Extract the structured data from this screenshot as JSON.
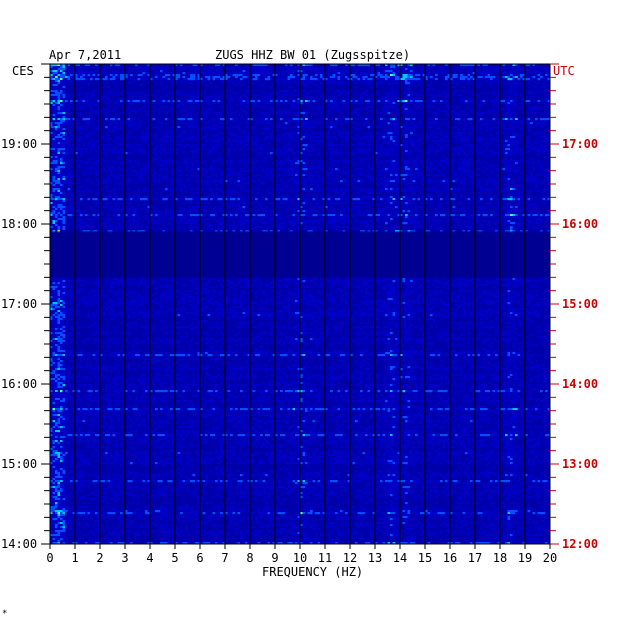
{
  "chart_data": {
    "type": "heatmap",
    "date": "Apr 7,2011",
    "title": "ZUGS HHZ BW 01 (Zugsspitze)",
    "left_axis_label": "CES",
    "right_axis_label": "UTC",
    "xlabel": "FREQUENCY (HZ)",
    "xlim": [
      0,
      20
    ],
    "x_ticks": [
      "0",
      "1",
      "2",
      "3",
      "4",
      "5",
      "6",
      "7",
      "8",
      "9",
      "10",
      "11",
      "12",
      "13",
      "14",
      "15",
      "16",
      "17",
      "18",
      "19",
      "20"
    ],
    "left_time_ticks": [
      "19:00",
      "18:00",
      "17:00",
      "16:00",
      "15:00",
      "14:00"
    ],
    "right_time_ticks": [
      "17:00",
      "16:00",
      "15:00",
      "14:00",
      "13:00",
      "12:00"
    ],
    "colors": {
      "background": "#0000aa",
      "left_ticks": "#000000",
      "right_ticks": "#cc0000",
      "scale": [
        "#00007f",
        "#0000c8",
        "#0050ff",
        "#00c8ff",
        "#50ffa0",
        "#ffff00",
        "#ff5000",
        "#c80000"
      ]
    },
    "energetic_bands_hz": [
      {
        "center": 0.3,
        "note": "low-frequency strip"
      },
      {
        "center": 10.0,
        "note": "active column"
      },
      {
        "center": 13.6,
        "note": "active column"
      },
      {
        "center": 14.2,
        "note": "active column"
      },
      {
        "center": 18.4,
        "note": "active column"
      }
    ],
    "quiet_interval_ces": [
      "17:55",
      "17:20"
    ],
    "footer_mark": "*"
  }
}
